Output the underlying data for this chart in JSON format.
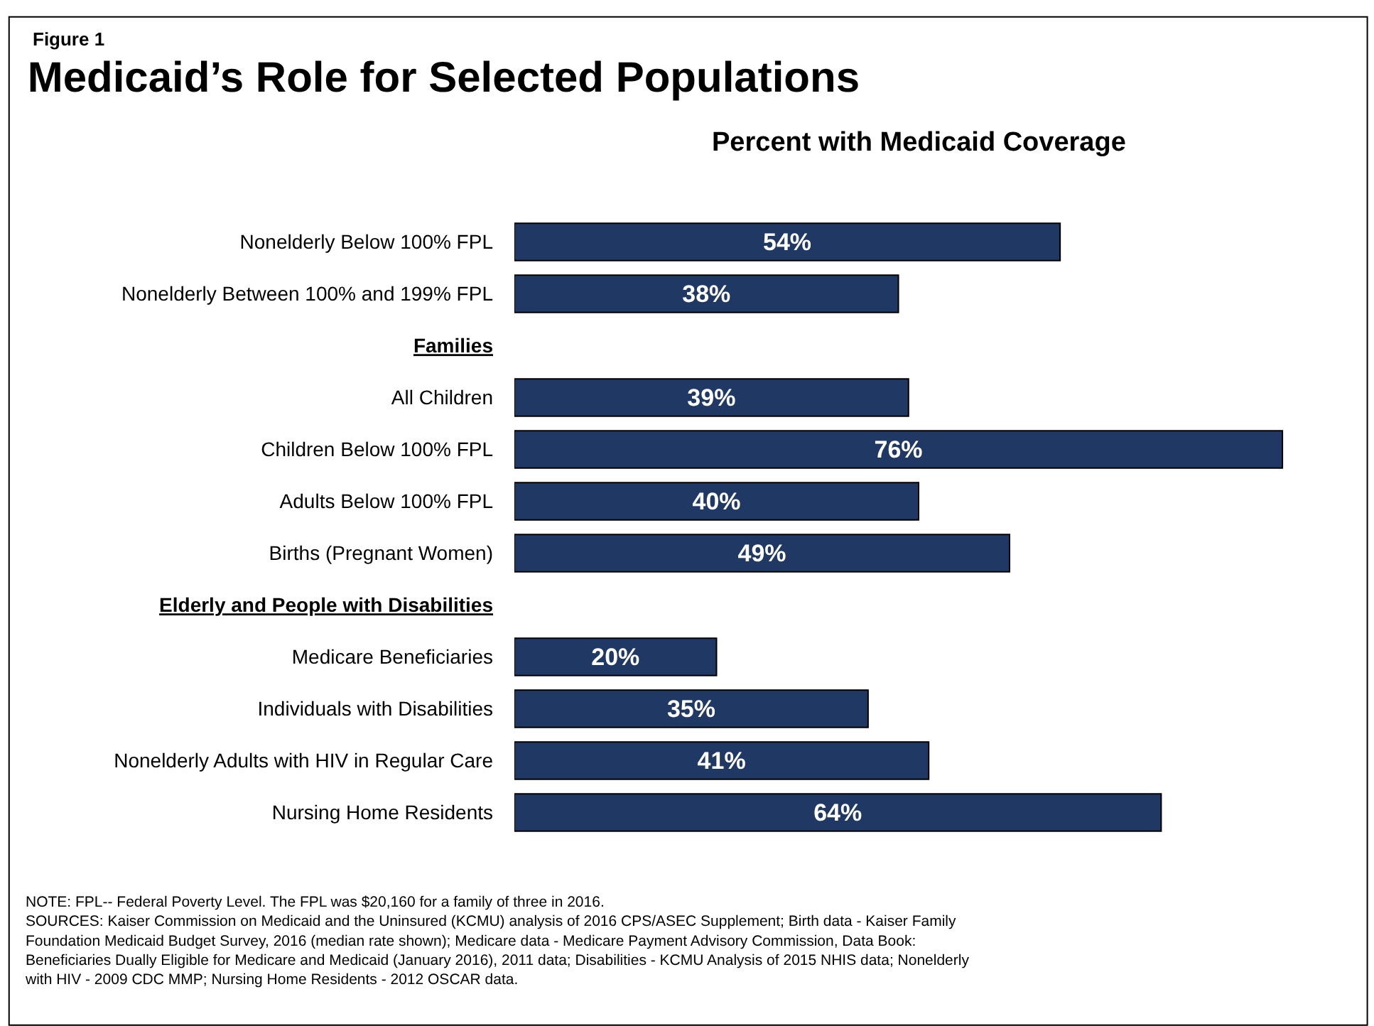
{
  "chart_data": {
    "type": "bar",
    "orientation": "horizontal",
    "title": "Medicaid’s Role for Selected Populations",
    "subtitle": "Percent with Medicaid Coverage",
    "categories": [
      "Nonelderly Below 100% FPL",
      "Nonelderly Between 100% and 199% FPL",
      "Families",
      "All Children",
      "Children Below 100% FPL",
      "Adults Below 100% FPL",
      "Births (Pregnant Women)",
      "Elderly and People with Disabilities",
      "Medicare Beneficiaries",
      "Individuals with Disabilities",
      "Nonelderly Adults with HIV in Regular Care",
      "Nursing Home Residents"
    ],
    "values": [
      54,
      38,
      null,
      39,
      76,
      40,
      49,
      null,
      20,
      35,
      41,
      64
    ],
    "value_labels": [
      "54%",
      "38%",
      null,
      "39%",
      "76%",
      "40%",
      "49%",
      null,
      "20%",
      "35%",
      "41%",
      "64%"
    ],
    "color": "#1f3864",
    "legend": false,
    "annotations": [
      "Figure 1",
      "NOTE: FPL-- Federal Poverty Level. The FPL was $20,160 for a family of three in 2016.\nSOURCES: Kaiser Commission on Medicaid and the Uninsured (KCMU) analysis of 2016 CPS/ASEC Supplement; Birth data - Kaiser Family\nFoundation Medicaid Budget Survey, 2016 (median rate shown); Medicare data - Medicare Payment Advisory Commission, Data Book:\nBeneficiaries Dually Eligible for Medicare and Medicaid (January 2016), 2011 data; Disabilities - KCMU Analysis of 2015 NHIS data; Nonelderly\nwith HIV - 2009 CDC MMP; Nursing Home Residents - 2012 OSCAR data."
    ]
  }
}
